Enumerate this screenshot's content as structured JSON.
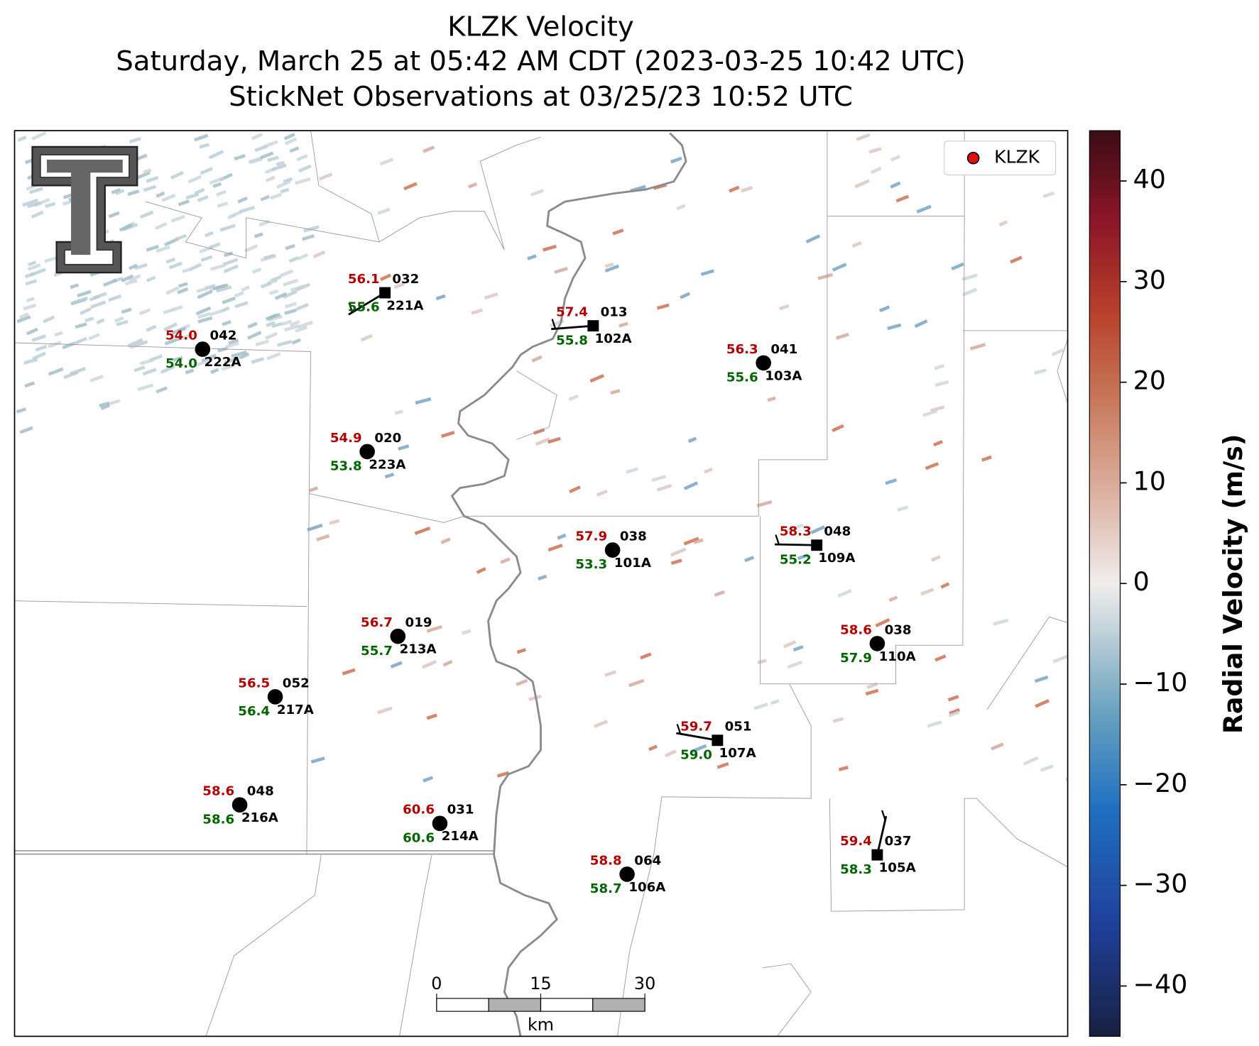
{
  "header": {
    "title": "KLZK Velocity",
    "subtitle": "Saturday, March 25 at 05:42 AM CDT (2023-03-25 10:42 UTC)",
    "observations": "StickNet Observations at 03/25/23 10:52 UTC"
  },
  "legend": {
    "label": "KLZK"
  },
  "stations": [
    {
      "temperature": "56.1",
      "wind_direction": "032",
      "dewpoint": "55.6",
      "id": "221A"
    },
    {
      "temperature": "54.0",
      "wind_direction": "042",
      "dewpoint": "54.0",
      "id": "222A"
    },
    {
      "temperature": "57.4",
      "wind_direction": "013",
      "dewpoint": "55.8",
      "id": "102A"
    },
    {
      "temperature": "56.3",
      "wind_direction": "041",
      "dewpoint": "55.6",
      "id": "103A"
    },
    {
      "temperature": "54.9",
      "wind_direction": "020",
      "dewpoint": "53.8",
      "id": "223A"
    },
    {
      "temperature": "57.9",
      "wind_direction": "038",
      "dewpoint": "53.3",
      "id": "101A"
    },
    {
      "temperature": "58.3",
      "wind_direction": "048",
      "dewpoint": "55.2",
      "id": "109A"
    },
    {
      "temperature": "56.7",
      "wind_direction": "019",
      "dewpoint": "55.7",
      "id": "213A"
    },
    {
      "temperature": "58.6",
      "wind_direction": "038",
      "dewpoint": "57.9",
      "id": "110A"
    },
    {
      "temperature": "56.5",
      "wind_direction": "052",
      "dewpoint": "56.4",
      "id": "217A"
    },
    {
      "temperature": "59.7",
      "wind_direction": "051",
      "dewpoint": "59.0",
      "id": "107A"
    },
    {
      "temperature": "58.6",
      "wind_direction": "048",
      "dewpoint": "58.6",
      "id": "216A"
    },
    {
      "temperature": "60.6",
      "wind_direction": "031",
      "dewpoint": "60.6",
      "id": "214A"
    },
    {
      "temperature": "58.8",
      "wind_direction": "064",
      "dewpoint": "58.7",
      "id": "106A"
    },
    {
      "temperature": "59.4",
      "wind_direction": "037",
      "dewpoint": "58.3",
      "id": "105A"
    }
  ],
  "scale_bar": {
    "ticks": [
      0,
      15,
      30
    ],
    "unit": "km"
  },
  "colorbar": {
    "label": "Radial Velocity (m/s)",
    "range": [
      -45,
      45
    ],
    "ticks": [
      {
        "value": -40,
        "label": "−40"
      },
      {
        "value": -30,
        "label": "−30"
      },
      {
        "value": -20,
        "label": "−20"
      },
      {
        "value": -10,
        "label": "−10"
      },
      0,
      10,
      20,
      30,
      40
    ]
  }
}
